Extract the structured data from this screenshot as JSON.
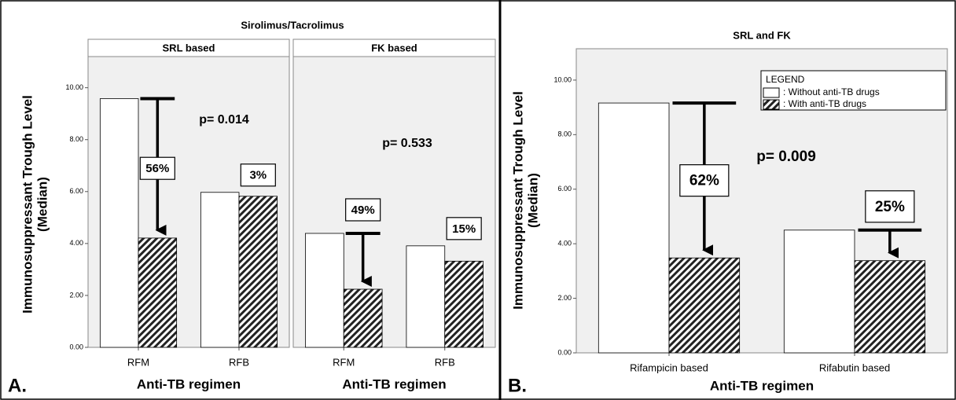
{
  "chart_data": [
    {
      "type": "bar",
      "panel_label": "A.",
      "title": "Sirolimus/Tacrolimus",
      "y_label": "Immunosuppressant Trough Level",
      "y_label_sub": "(Median)",
      "ylim": [
        0,
        11.2
      ],
      "yticks": [
        {
          "value": 0,
          "label": "0.00"
        },
        {
          "value": 2,
          "label": "2.00"
        },
        {
          "value": 4,
          "label": "4.00"
        },
        {
          "value": 6,
          "label": "6.00"
        },
        {
          "value": 8,
          "label": "8.00"
        },
        {
          "value": 10,
          "label": "10.00"
        }
      ],
      "facets": [
        {
          "title": "SRL based",
          "x_label": "Anti-TB regimen",
          "categories": [
            "RFM",
            "RFB"
          ],
          "series": [
            {
              "color": "#ffffff",
              "values": [
                9.58,
                5.97
              ]
            },
            {
              "color": "#222222",
              "pattern": "hatch",
              "values": [
                4.21,
                5.82
              ]
            }
          ],
          "annotations": [
            {
              "text": "56%",
              "arrow": true
            },
            {
              "text": "3%",
              "arrow": false
            }
          ],
          "p_value": "p= 0.014"
        },
        {
          "title": "FK based",
          "x_label": "Anti-TB regimen",
          "categories": [
            "RFM",
            "RFB"
          ],
          "series": [
            {
              "color": "#ffffff",
              "values": [
                4.39,
                3.91
              ]
            },
            {
              "color": "#222222",
              "pattern": "hatch",
              "values": [
                2.24,
                3.32
              ]
            }
          ],
          "annotations": [
            {
              "text": "49%",
              "arrow": true
            },
            {
              "text": "15%",
              "arrow": false
            }
          ],
          "p_value": "p= 0.533"
        }
      ]
    },
    {
      "type": "bar",
      "panel_label": "B.",
      "title": "SRL and FK",
      "y_label": "Immunosuppressant Trough Level",
      "y_label_sub": "(Median)",
      "ylim": [
        0,
        11.15
      ],
      "yticks": [
        {
          "value": 0,
          "label": "0.00"
        },
        {
          "value": 2,
          "label": "2.00"
        },
        {
          "value": 4,
          "label": "4.00"
        },
        {
          "value": 6,
          "label": "6.00"
        },
        {
          "value": 8,
          "label": "8.00"
        },
        {
          "value": 10,
          "label": "10.00"
        }
      ],
      "legend_title": "LEGEND",
      "facets": [
        {
          "x_label": "Anti-TB regimen",
          "categories": [
            "Rifampicin based",
            "Rifabutin based"
          ],
          "series": [
            {
              "name": ": Without anti-TB drugs",
              "color": "#ffffff",
              "values": [
                9.16,
                4.5
              ]
            },
            {
              "name": ": With anti-TB drugs",
              "color": "#222222",
              "pattern": "hatch",
              "values": [
                3.48,
                3.38
              ]
            }
          ],
          "annotations": [
            {
              "text": "62%",
              "arrow": true
            },
            {
              "text": "25%",
              "arrow": true
            }
          ],
          "p_value": "p= 0.009"
        }
      ]
    }
  ]
}
